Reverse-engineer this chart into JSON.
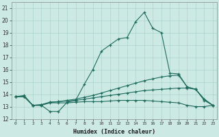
{
  "xlabel": "Humidex (Indice chaleur)",
  "bg_color": "#cce9e4",
  "grid_color": "#aad4cc",
  "line_color": "#1e6b5e",
  "xlim": [
    -0.5,
    23.5
  ],
  "ylim": [
    12,
    21.5
  ],
  "yticks": [
    12,
    13,
    14,
    15,
    16,
    17,
    18,
    19,
    20,
    21
  ],
  "xticks": [
    0,
    1,
    2,
    3,
    4,
    5,
    6,
    7,
    8,
    9,
    10,
    11,
    12,
    13,
    14,
    15,
    16,
    17,
    18,
    19,
    20,
    21,
    22,
    23
  ],
  "lines": [
    {
      "x": [
        0,
        1,
        2,
        3,
        4,
        5,
        6,
        7,
        8,
        9,
        10,
        11,
        12,
        13,
        14,
        15,
        16,
        17,
        18,
        19,
        20,
        21,
        22,
        23
      ],
      "y": [
        13.8,
        13.9,
        13.1,
        13.1,
        12.6,
        12.6,
        13.35,
        13.5,
        14.8,
        16.0,
        17.5,
        18.0,
        18.5,
        18.6,
        19.9,
        20.65,
        19.35,
        19.0,
        15.7,
        15.65,
        14.6,
        14.4,
        13.6,
        13.1
      ]
    },
    {
      "x": [
        0,
        1,
        2,
        3,
        4,
        5,
        6,
        7,
        8,
        9,
        10,
        11,
        12,
        13,
        14,
        15,
        16,
        17,
        18,
        19,
        20,
        21,
        22,
        23
      ],
      "y": [
        13.8,
        13.8,
        13.1,
        13.15,
        13.35,
        13.4,
        13.5,
        13.6,
        13.75,
        13.9,
        14.1,
        14.3,
        14.5,
        14.7,
        14.9,
        15.1,
        15.25,
        15.4,
        15.5,
        15.55,
        14.6,
        14.4,
        13.6,
        13.1
      ]
    },
    {
      "x": [
        0,
        1,
        2,
        3,
        4,
        5,
        6,
        7,
        8,
        9,
        10,
        11,
        12,
        13,
        14,
        15,
        16,
        17,
        18,
        19,
        20,
        21,
        22,
        23
      ],
      "y": [
        13.8,
        13.8,
        13.1,
        13.15,
        13.35,
        13.4,
        13.45,
        13.5,
        13.6,
        13.7,
        13.8,
        13.9,
        14.0,
        14.1,
        14.2,
        14.3,
        14.35,
        14.4,
        14.45,
        14.5,
        14.5,
        14.4,
        13.5,
        13.1
      ]
    },
    {
      "x": [
        0,
        1,
        2,
        3,
        4,
        5,
        6,
        7,
        8,
        9,
        10,
        11,
        12,
        13,
        14,
        15,
        16,
        17,
        18,
        19,
        20,
        21,
        22,
        23
      ],
      "y": [
        13.8,
        13.8,
        13.1,
        13.1,
        13.3,
        13.3,
        13.3,
        13.35,
        13.4,
        13.4,
        13.4,
        13.45,
        13.5,
        13.5,
        13.5,
        13.5,
        13.45,
        13.4,
        13.35,
        13.3,
        13.1,
        13.0,
        13.0,
        13.1
      ]
    }
  ]
}
